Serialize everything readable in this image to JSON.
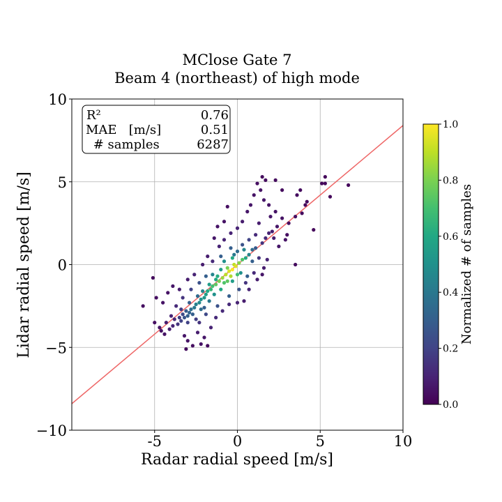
{
  "chart_data": {
    "type": "scatter",
    "title": "MClose Gate 7",
    "subtitle": "Beam 4 (northeast) of high mode",
    "xlabel": "Radar radial speed [m/s]",
    "ylabel": "Lidar radial speed [m/s]",
    "xlim": [
      -10,
      10
    ],
    "ylim": [
      -10,
      10
    ],
    "x_ticks": [
      -5,
      0,
      5,
      10
    ],
    "x_tick_labels": [
      "-5",
      "0",
      "5",
      "10"
    ],
    "y_ticks": [
      -10,
      -5,
      0,
      5,
      10
    ],
    "y_tick_labels": [
      "−10",
      "−5",
      "0",
      "5",
      "10"
    ],
    "grid": true,
    "fit_line": {
      "slope": 0.84,
      "intercept": 0.0,
      "color": "#ee6666"
    },
    "stats_box": {
      "placement": "top-left",
      "rows": [
        {
          "label": "R²",
          "value": "0.76"
        },
        {
          "label": "MAE   [m/s]",
          "value": "0.51"
        },
        {
          "label": " # samples",
          "value": "6287"
        }
      ]
    },
    "colorbar": {
      "label": "Normalized # of samples",
      "min": 0.0,
      "max": 1.0,
      "ticks": [
        0.0,
        0.2,
        0.4,
        0.6,
        0.8,
        1.0
      ],
      "tick_labels": [
        "0.0",
        "0.2",
        "0.4",
        "0.6",
        "0.8",
        "1.0"
      ],
      "colormap": "viridis"
    },
    "points": [
      {
        "x": -0.3,
        "y": -0.3,
        "d": 1.0
      },
      {
        "x": -0.5,
        "y": -0.4,
        "d": 0.95
      },
      {
        "x": -0.1,
        "y": -0.1,
        "d": 0.95
      },
      {
        "x": -0.7,
        "y": -0.6,
        "d": 0.9
      },
      {
        "x": -0.2,
        "y": 0.0,
        "d": 0.9
      },
      {
        "x": -0.4,
        "y": -0.7,
        "d": 0.88
      },
      {
        "x": -0.9,
        "y": -0.8,
        "d": 0.85
      },
      {
        "x": 0.1,
        "y": 0.1,
        "d": 0.82
      },
      {
        "x": -1.1,
        "y": -1.0,
        "d": 0.8
      },
      {
        "x": -0.6,
        "y": -0.2,
        "d": 0.8
      },
      {
        "x": -1.3,
        "y": -1.2,
        "d": 0.75
      },
      {
        "x": 0.3,
        "y": 0.3,
        "d": 0.72
      },
      {
        "x": -0.8,
        "y": -1.1,
        "d": 0.72
      },
      {
        "x": -1.5,
        "y": -1.3,
        "d": 0.7
      },
      {
        "x": -1.6,
        "y": -1.5,
        "d": 0.66
      },
      {
        "x": -1.2,
        "y": -0.7,
        "d": 0.62
      },
      {
        "x": -1.8,
        "y": -1.6,
        "d": 0.6
      },
      {
        "x": 0.5,
        "y": 0.4,
        "d": 0.6
      },
      {
        "x": -1.9,
        "y": -1.8,
        "d": 0.55
      },
      {
        "x": -2.0,
        "y": -2.0,
        "d": 0.52
      },
      {
        "x": -1.4,
        "y": -1.8,
        "d": 0.5
      },
      {
        "x": -2.2,
        "y": -2.1,
        "d": 0.5
      },
      {
        "x": -2.3,
        "y": -2.3,
        "d": 0.47
      },
      {
        "x": -2.1,
        "y": -1.6,
        "d": 0.45
      },
      {
        "x": 0.7,
        "y": 0.6,
        "d": 0.45
      },
      {
        "x": -2.5,
        "y": -2.4,
        "d": 0.43
      },
      {
        "x": -2.6,
        "y": -2.6,
        "d": 0.4
      },
      {
        "x": -1.7,
        "y": -2.2,
        "d": 0.4
      },
      {
        "x": -2.8,
        "y": -2.7,
        "d": 0.36
      },
      {
        "x": -2.4,
        "y": -1.9,
        "d": 0.35
      },
      {
        "x": 0.9,
        "y": 0.9,
        "d": 0.35
      },
      {
        "x": -2.9,
        "y": -2.9,
        "d": 0.32
      },
      {
        "x": -3.0,
        "y": -3.1,
        "d": 0.3
      },
      {
        "x": -2.7,
        "y": -3.0,
        "d": 0.3
      },
      {
        "x": -3.1,
        "y": -2.8,
        "d": 0.28
      },
      {
        "x": -3.2,
        "y": -3.2,
        "d": 0.26
      },
      {
        "x": 1.1,
        "y": 1.0,
        "d": 0.28
      },
      {
        "x": -2.0,
        "y": -2.6,
        "d": 0.3
      },
      {
        "x": -1.0,
        "y": -1.5,
        "d": 0.6
      },
      {
        "x": -0.3,
        "y": -1.0,
        "d": 0.55
      },
      {
        "x": 0.2,
        "y": -0.5,
        "d": 0.5
      },
      {
        "x": -1.5,
        "y": -0.6,
        "d": 0.45
      },
      {
        "x": -0.8,
        "y": 0.2,
        "d": 0.5
      },
      {
        "x": -1.0,
        "y": -0.3,
        "d": 0.55
      },
      {
        "x": 0.4,
        "y": 0.9,
        "d": 0.45
      },
      {
        "x": -0.2,
        "y": 0.6,
        "d": 0.4
      },
      {
        "x": 0.0,
        "y": 0.8,
        "d": 0.35
      },
      {
        "x": -3.3,
        "y": -3.0,
        "d": 0.22
      },
      {
        "x": -3.4,
        "y": -3.4,
        "d": 0.2
      },
      {
        "x": -3.5,
        "y": -3.2,
        "d": 0.18
      },
      {
        "x": -3.6,
        "y": -3.6,
        "d": 0.15
      },
      {
        "x": -3.0,
        "y": -3.5,
        "d": 0.2
      },
      {
        "x": -2.5,
        "y": -3.3,
        "d": 0.18
      },
      {
        "x": -3.8,
        "y": -3.3,
        "d": 0.12
      },
      {
        "x": -4.0,
        "y": -3.1,
        "d": 0.1
      },
      {
        "x": -4.3,
        "y": -3.5,
        "d": 0.08
      },
      {
        "x": -4.7,
        "y": -3.8,
        "d": 0.05
      },
      {
        "x": -4.5,
        "y": -2.3,
        "d": 0.05
      },
      {
        "x": -4.9,
        "y": -2.0,
        "d": 0.04
      },
      {
        "x": -5.7,
        "y": -2.5,
        "d": 0.04
      },
      {
        "x": -5.1,
        "y": -0.8,
        "d": 0.03
      },
      {
        "x": -4.2,
        "y": -1.7,
        "d": 0.05
      },
      {
        "x": -3.9,
        "y": -1.3,
        "d": 0.06
      },
      {
        "x": -3.5,
        "y": -1.5,
        "d": 0.08
      },
      {
        "x": -3.0,
        "y": -0.9,
        "d": 0.08
      },
      {
        "x": -2.6,
        "y": -0.6,
        "d": 0.1
      },
      {
        "x": -4.6,
        "y": -4.0,
        "d": 0.05
      },
      {
        "x": -5.0,
        "y": -3.5,
        "d": 0.04
      },
      {
        "x": -4.4,
        "y": -4.2,
        "d": 0.05
      },
      {
        "x": -3.2,
        "y": -4.3,
        "d": 0.06
      },
      {
        "x": -3.0,
        "y": -4.6,
        "d": 0.05
      },
      {
        "x": -3.1,
        "y": -5.1,
        "d": 0.03
      },
      {
        "x": -2.7,
        "y": -4.9,
        "d": 0.04
      },
      {
        "x": -2.2,
        "y": -4.8,
        "d": 0.05
      },
      {
        "x": -1.8,
        "y": -4.9,
        "d": 0.03
      },
      {
        "x": -2.0,
        "y": -4.4,
        "d": 0.06
      },
      {
        "x": -2.4,
        "y": -4.1,
        "d": 0.08
      },
      {
        "x": -1.6,
        "y": -3.8,
        "d": 0.1
      },
      {
        "x": -1.3,
        "y": -3.2,
        "d": 0.12
      },
      {
        "x": -0.9,
        "y": -2.8,
        "d": 0.12
      },
      {
        "x": -0.5,
        "y": -2.4,
        "d": 0.12
      },
      {
        "x": 0.0,
        "y": -2.3,
        "d": 0.1
      },
      {
        "x": 0.4,
        "y": -2.2,
        "d": 0.08
      },
      {
        "x": 0.7,
        "y": -1.5,
        "d": 0.1
      },
      {
        "x": 0.5,
        "y": -1.1,
        "d": 0.15
      },
      {
        "x": 1.0,
        "y": -0.5,
        "d": 0.12
      },
      {
        "x": 1.2,
        "y": -0.9,
        "d": 0.08
      },
      {
        "x": 1.5,
        "y": -0.6,
        "d": 0.06
      },
      {
        "x": 1.6,
        "y": -0.2,
        "d": 0.08
      },
      {
        "x": 1.8,
        "y": 0.3,
        "d": 0.1
      },
      {
        "x": 1.3,
        "y": 0.4,
        "d": 0.15
      },
      {
        "x": 1.5,
        "y": 1.3,
        "d": 0.15
      },
      {
        "x": 1.7,
        "y": 1.6,
        "d": 0.12
      },
      {
        "x": 1.9,
        "y": 1.9,
        "d": 0.1
      },
      {
        "x": 2.1,
        "y": 2.0,
        "d": 0.08
      },
      {
        "x": 2.2,
        "y": 1.6,
        "d": 0.08
      },
      {
        "x": 2.4,
        "y": 2.3,
        "d": 0.06
      },
      {
        "x": 2.5,
        "y": 1.1,
        "d": 0.06
      },
      {
        "x": 2.9,
        "y": 1.5,
        "d": 0.05
      },
      {
        "x": 3.1,
        "y": 2.5,
        "d": 0.04
      },
      {
        "x": 3.5,
        "y": 2.9,
        "d": 0.04
      },
      {
        "x": 3.9,
        "y": 3.1,
        "d": 0.03
      },
      {
        "x": 4.1,
        "y": 3.6,
        "d": 0.03
      },
      {
        "x": 3.6,
        "y": 4.2,
        "d": 0.03
      },
      {
        "x": 3.8,
        "y": 4.5,
        "d": 0.03
      },
      {
        "x": 4.2,
        "y": 3.8,
        "d": 0.03
      },
      {
        "x": 5.1,
        "y": 4.9,
        "d": 0.02
      },
      {
        "x": 5.3,
        "y": 4.9,
        "d": 0.02
      },
      {
        "x": 5.6,
        "y": 4.1,
        "d": 0.02
      },
      {
        "x": 6.7,
        "y": 4.8,
        "d": 0.02
      },
      {
        "x": 5.3,
        "y": 5.3,
        "d": 0.02
      },
      {
        "x": 4.6,
        "y": 2.1,
        "d": 0.02
      },
      {
        "x": 3.5,
        "y": 0.0,
        "d": 0.03
      },
      {
        "x": 3.0,
        "y": 1.8,
        "d": 0.04
      },
      {
        "x": 2.7,
        "y": 2.8,
        "d": 0.05
      },
      {
        "x": 2.3,
        "y": 3.2,
        "d": 0.05
      },
      {
        "x": 1.9,
        "y": 3.6,
        "d": 0.05
      },
      {
        "x": 1.6,
        "y": 3.9,
        "d": 0.06
      },
      {
        "x": 1.4,
        "y": 4.5,
        "d": 0.05
      },
      {
        "x": 1.5,
        "y": 5.3,
        "d": 0.03
      },
      {
        "x": 1.7,
        "y": 5.1,
        "d": 0.03
      },
      {
        "x": 2.3,
        "y": 5.1,
        "d": 0.03
      },
      {
        "x": 1.2,
        "y": 4.9,
        "d": 0.04
      },
      {
        "x": 1.0,
        "y": 4.2,
        "d": 0.05
      },
      {
        "x": 0.8,
        "y": 3.6,
        "d": 0.06
      },
      {
        "x": 0.6,
        "y": 3.2,
        "d": 0.06
      },
      {
        "x": 0.3,
        "y": 2.6,
        "d": 0.08
      },
      {
        "x": 0.0,
        "y": 2.2,
        "d": 0.1
      },
      {
        "x": -0.4,
        "y": 1.9,
        "d": 0.1
      },
      {
        "x": -0.8,
        "y": 1.5,
        "d": 0.1
      },
      {
        "x": -1.1,
        "y": 1.1,
        "d": 0.1
      },
      {
        "x": -0.6,
        "y": 3.5,
        "d": 0.04
      },
      {
        "x": -0.8,
        "y": 2.6,
        "d": 0.05
      },
      {
        "x": -1.2,
        "y": 2.3,
        "d": 0.05
      },
      {
        "x": -1.4,
        "y": 1.6,
        "d": 0.06
      },
      {
        "x": -1.8,
        "y": 0.5,
        "d": 0.08
      },
      {
        "x": -2.1,
        "y": 0.0,
        "d": 0.08
      },
      {
        "x": -1.5,
        "y": 0.2,
        "d": 0.12
      },
      {
        "x": 2.7,
        "y": 4.5,
        "d": 0.03
      },
      {
        "x": 2.0,
        "y": 2.9,
        "d": 0.06
      },
      {
        "x": 1.3,
        "y": 2.5,
        "d": 0.08
      },
      {
        "x": 1.1,
        "y": 1.8,
        "d": 0.12
      },
      {
        "x": 0.7,
        "y": 1.5,
        "d": 0.2
      },
      {
        "x": 0.3,
        "y": 1.2,
        "d": 0.25
      },
      {
        "x": -0.4,
        "y": 1.0,
        "d": 0.3
      },
      {
        "x": -1.0,
        "y": 0.5,
        "d": 0.3
      },
      {
        "x": 0.6,
        "y": -0.7,
        "d": 0.3
      },
      {
        "x": 0.9,
        "y": 0.2,
        "d": 0.3
      },
      {
        "x": 0.1,
        "y": -1.5,
        "d": 0.25
      },
      {
        "x": -0.5,
        "y": -1.9,
        "d": 0.3
      },
      {
        "x": -1.2,
        "y": -2.5,
        "d": 0.25
      },
      {
        "x": -1.9,
        "y": -3.0,
        "d": 0.22
      },
      {
        "x": -2.3,
        "y": -3.5,
        "d": 0.15
      },
      {
        "x": -3.7,
        "y": -2.5,
        "d": 0.12
      },
      {
        "x": -3.3,
        "y": -2.0,
        "d": 0.15
      },
      {
        "x": -2.8,
        "y": -1.5,
        "d": 0.2
      },
      {
        "x": -2.3,
        "y": -1.1,
        "d": 0.25
      },
      {
        "x": -1.9,
        "y": -0.7,
        "d": 0.3
      },
      {
        "x": -0.3,
        "y": 0.4,
        "d": 0.6
      },
      {
        "x": 0.0,
        "y": -0.6,
        "d": 0.7
      },
      {
        "x": -0.6,
        "y": -1.0,
        "d": 0.75
      },
      {
        "x": -1.3,
        "y": -0.9,
        "d": 0.6
      },
      {
        "x": -1.7,
        "y": -1.2,
        "d": 0.55
      },
      {
        "x": -2.2,
        "y": -2.7,
        "d": 0.35
      },
      {
        "x": -2.9,
        "y": -2.3,
        "d": 0.3
      },
      {
        "x": -3.4,
        "y": -2.7,
        "d": 0.18
      },
      {
        "x": -3.9,
        "y": -3.7,
        "d": 0.1
      },
      {
        "x": -4.1,
        "y": -3.9,
        "d": 0.08
      }
    ]
  }
}
